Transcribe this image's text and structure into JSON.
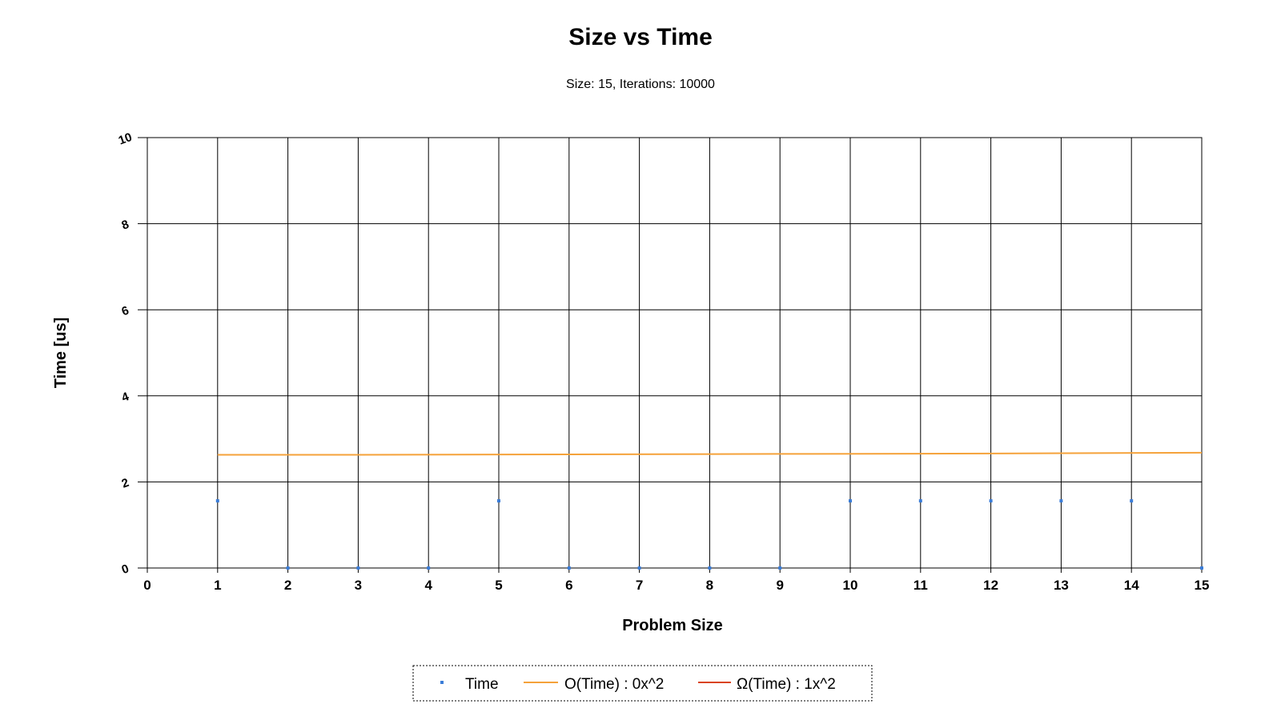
{
  "chart_data": {
    "type": "scatter",
    "title": "Size vs Time",
    "subtitle": "Size: 15, Iterations: 10000",
    "xlabel": "Problem Size",
    "ylabel": "Time [us]",
    "xlim": [
      0,
      15
    ],
    "ylim": [
      0,
      10
    ],
    "x_ticks": [
      "0",
      "1",
      "2",
      "3",
      "4",
      "5",
      "6",
      "7",
      "8",
      "9",
      "10",
      "11",
      "12",
      "13",
      "14",
      "15"
    ],
    "y_ticks": [
      "0",
      "2",
      "4",
      "6",
      "8",
      "10"
    ],
    "grid": true,
    "legend_position": "bottom-center",
    "series": [
      {
        "name": "Time",
        "kind": "scatter",
        "color": "#3b7dd8",
        "x": [
          1,
          2,
          3,
          4,
          5,
          6,
          7,
          8,
          9,
          10,
          11,
          12,
          13,
          14,
          15
        ],
        "y": [
          1.56,
          0,
          0,
          0,
          1.56,
          0,
          0,
          0,
          0,
          1.56,
          1.56,
          1.56,
          1.56,
          1.56,
          0
        ]
      },
      {
        "name": "O(Time) : 0x^2",
        "kind": "line",
        "color": "#f5a23a",
        "x": [
          1,
          3,
          6,
          9,
          12,
          15
        ],
        "y": [
          2.63,
          2.63,
          2.64,
          2.65,
          2.66,
          2.68
        ]
      },
      {
        "name": "Ω(Time) : 1x^2",
        "kind": "line",
        "color": "#d9431c",
        "x": [],
        "y": []
      }
    ]
  }
}
